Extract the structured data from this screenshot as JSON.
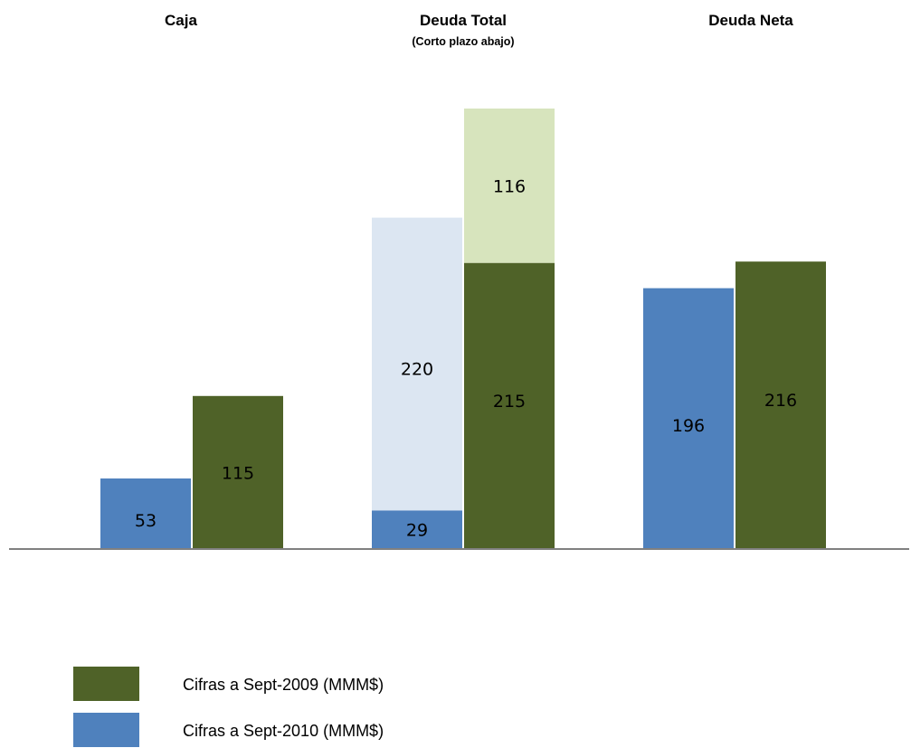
{
  "chart_data": {
    "type": "bar",
    "stacked_partially": true,
    "categories": [
      "Caja",
      "Deuda Total",
      "Deuda Neta"
    ],
    "category_subtitles": [
      "",
      "(Corto plazo abajo)",
      ""
    ],
    "series": [
      {
        "name": "Cifras a Sept-2010 (MMM$)",
        "color": "#4F81BD",
        "light_color": "#DCE6F2",
        "values": [
          53,
          249,
          196
        ],
        "segments": [
          [
            {
              "value": 53,
              "label": "53",
              "shade": "dark"
            }
          ],
          [
            {
              "value": 29,
              "label": "29",
              "shade": "dark"
            },
            {
              "value": 220,
              "label": "220",
              "shade": "light"
            }
          ],
          [
            {
              "value": 196,
              "label": "196",
              "shade": "dark"
            }
          ]
        ]
      },
      {
        "name": "Cifras a Sept-2009 (MMM$)",
        "color": "#4F6228",
        "light_color": "#D7E4BD",
        "values": [
          115,
          331,
          216
        ],
        "segments": [
          [
            {
              "value": 115,
              "label": "115",
              "shade": "dark"
            }
          ],
          [
            {
              "value": 215,
              "label": "215",
              "shade": "dark"
            },
            {
              "value": 116,
              "label": "116",
              "shade": "light"
            }
          ],
          [
            {
              "value": 216,
              "label": "216",
              "shade": "dark"
            }
          ]
        ]
      }
    ],
    "ylim": [
      0,
      331
    ],
    "axis_color": "#808080",
    "grid": false,
    "legend": {
      "position": "bottom-left",
      "entries": [
        {
          "label": "Cifras a Sept-2009 (MMM$)",
          "color": "#4F6228"
        },
        {
          "label": "Cifras a Sept-2010 (MMM$)",
          "color": "#4F81BD"
        }
      ]
    }
  }
}
